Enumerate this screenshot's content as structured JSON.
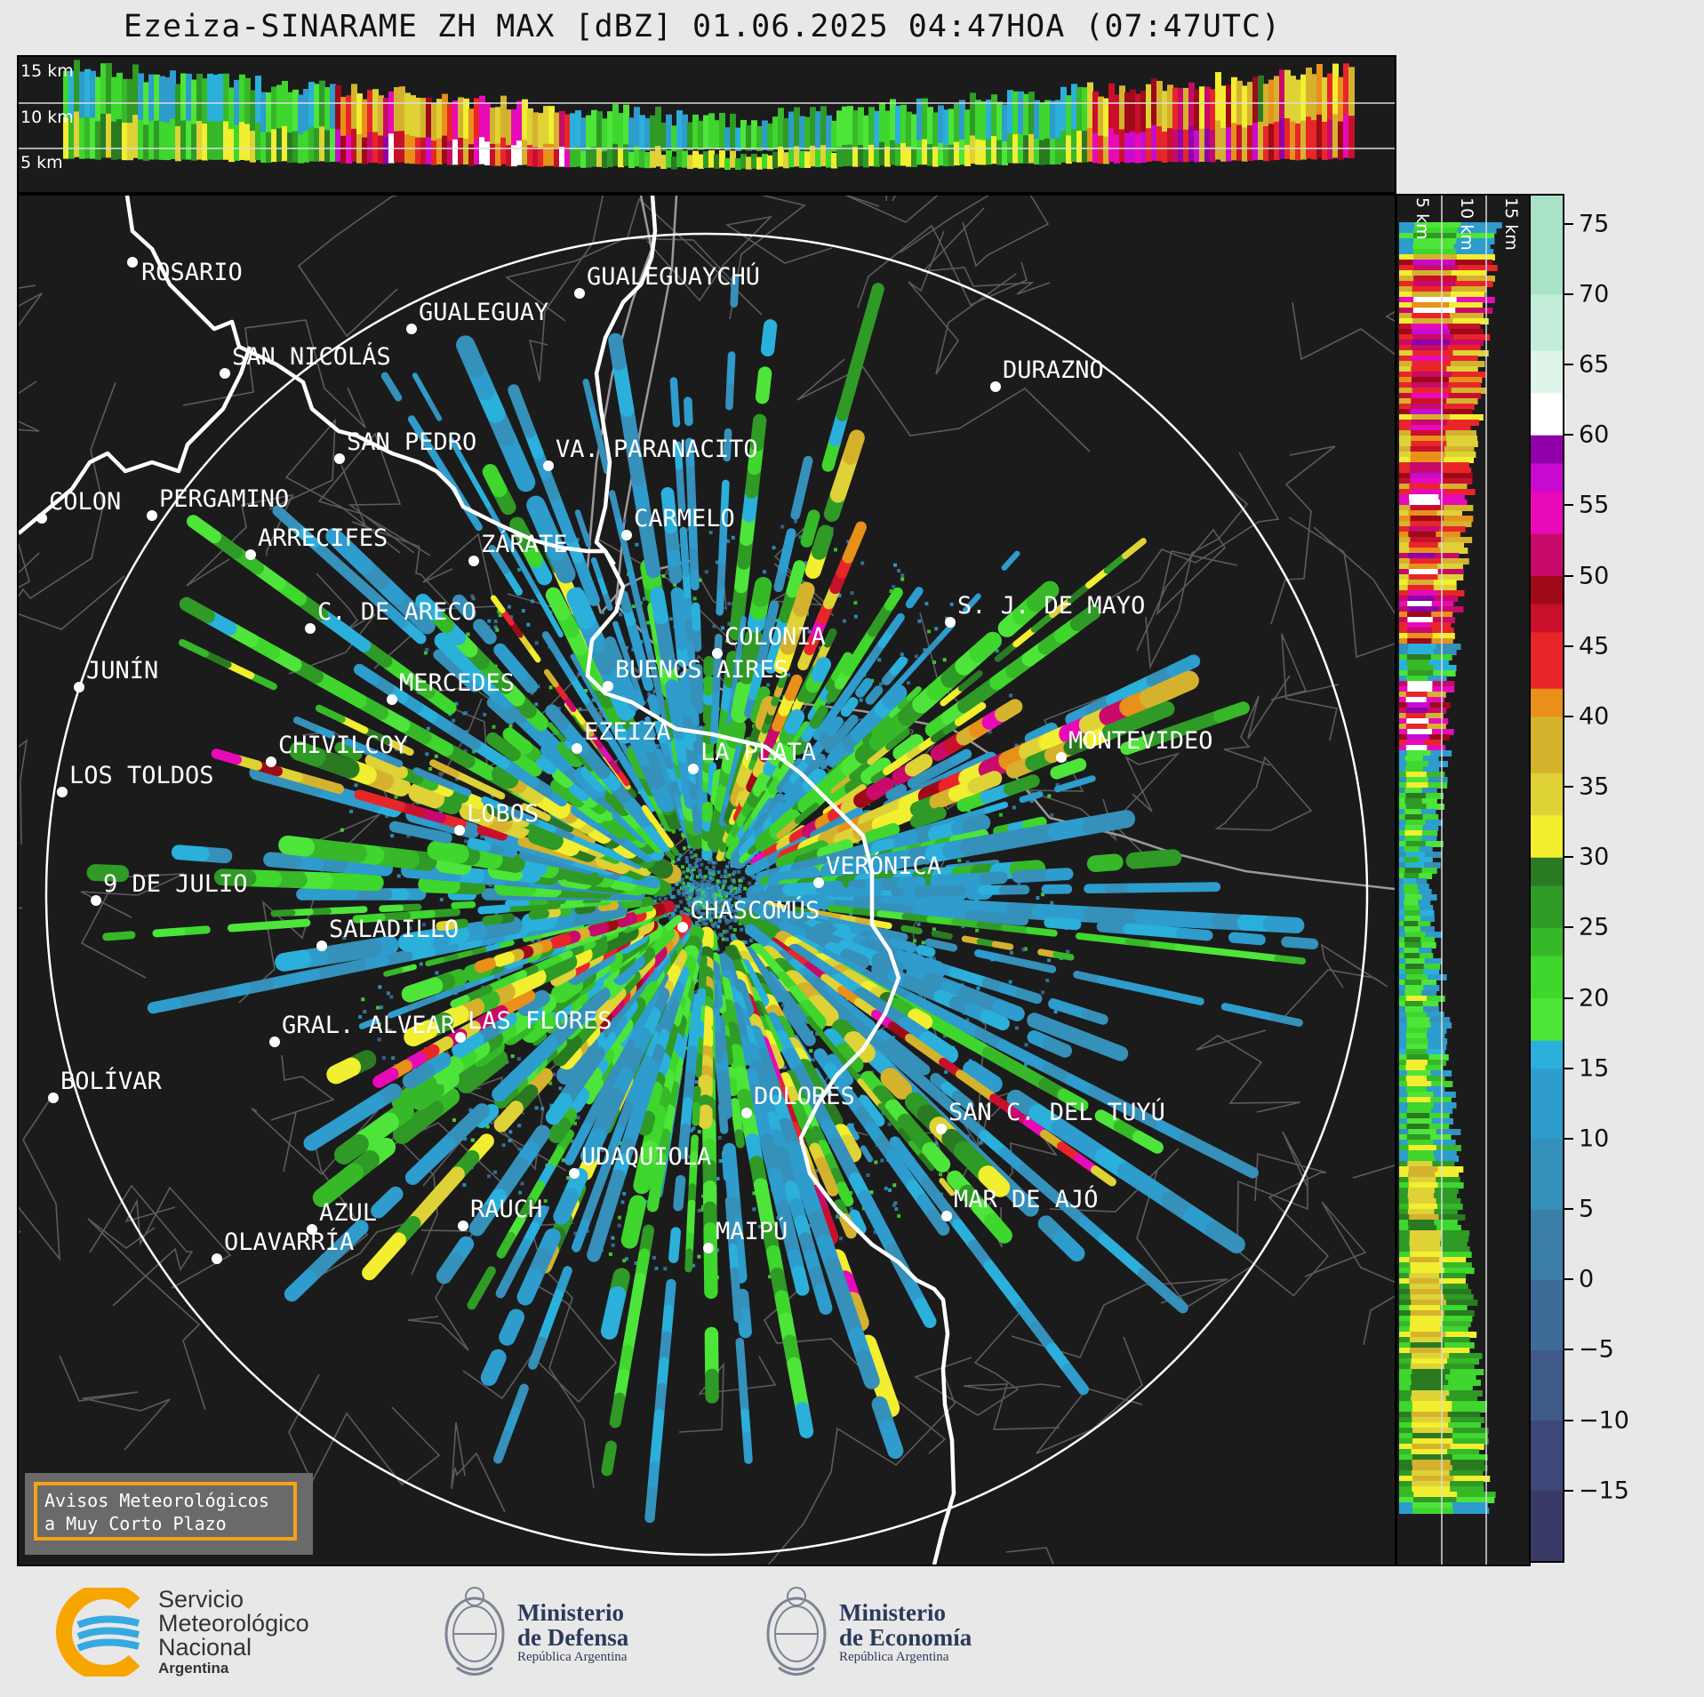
{
  "title": "Ezeiza-SINARAME ZH MAX [dBZ] 01.06.2025 04:47HOA (07:47UTC)",
  "height_labels": {
    "top": [
      "15 km",
      "10 km",
      "5 km"
    ],
    "side": [
      "5 km",
      "10 km",
      "15 km"
    ]
  },
  "colorbar": {
    "ticks": [
      "75",
      "70",
      "65",
      "60",
      "55",
      "50",
      "45",
      "40",
      "35",
      "30",
      "25",
      "20",
      "15",
      "10",
      "5",
      "0",
      "−5",
      "−10",
      "−15"
    ],
    "values": [
      75,
      70,
      65,
      60,
      55,
      50,
      45,
      40,
      35,
      30,
      25,
      20,
      15,
      10,
      5,
      0,
      -5,
      -10,
      -15
    ],
    "range": [
      -20,
      77
    ]
  },
  "cities": [
    {
      "name": "ROSARIO"
    },
    {
      "name": "GUALEGUAYCHÚ"
    },
    {
      "name": "GUALEGUAY"
    },
    {
      "name": "SAN NICOLÁS"
    },
    {
      "name": "DURAZNO"
    },
    {
      "name": "SAN PEDRO"
    },
    {
      "name": "VA. PARANACITO"
    },
    {
      "name": "COLON"
    },
    {
      "name": "PERGAMINO"
    },
    {
      "name": "CARMELO"
    },
    {
      "name": "ARRECIFES"
    },
    {
      "name": "ZÁRATE"
    },
    {
      "name": "S. J. DE MAYO"
    },
    {
      "name": "C. DE ARECO"
    },
    {
      "name": "COLONIA"
    },
    {
      "name": "JUNÍN"
    },
    {
      "name": "BUENOS AIRES"
    },
    {
      "name": "MERCEDES"
    },
    {
      "name": "EZEIZA"
    },
    {
      "name": "MONTEVIDEO"
    },
    {
      "name": "CHIVILCOY"
    },
    {
      "name": "LA PLATA"
    },
    {
      "name": "LOS TOLDOS"
    },
    {
      "name": "LOBOS"
    },
    {
      "name": "VERÓNICA"
    },
    {
      "name": "9 DE JULIO"
    },
    {
      "name": "CHASCOMÚS"
    },
    {
      "name": "SALADILLO"
    },
    {
      "name": "GRAL. ALVEAR"
    },
    {
      "name": "LAS FLORES"
    },
    {
      "name": "BOLÍVAR"
    },
    {
      "name": "DOLORES"
    },
    {
      "name": "SAN C. DEL TUYÚ"
    },
    {
      "name": "UDAQUIOLA"
    },
    {
      "name": "MAR DE AJÓ"
    },
    {
      "name": "AZUL"
    },
    {
      "name": "RAUCH"
    },
    {
      "name": "OLAVARRÍA"
    },
    {
      "name": "MAIPÚ"
    }
  ],
  "warning_box": {
    "line1": "Avisos Meteorológicos",
    "line2": "a Muy Corto Plazo",
    "color": "#f7a11a"
  },
  "logos": {
    "smn": {
      "line1": "Servicio",
      "line2": "Meteorológico",
      "line3": "Nacional",
      "line4": "Argentina"
    },
    "defensa": {
      "line1": "Ministerio",
      "line2": "de Defensa",
      "line3": "República Argentina"
    },
    "economia": {
      "line1": "Ministerio",
      "line2": "de Economía",
      "line3": "República Argentina"
    }
  }
}
